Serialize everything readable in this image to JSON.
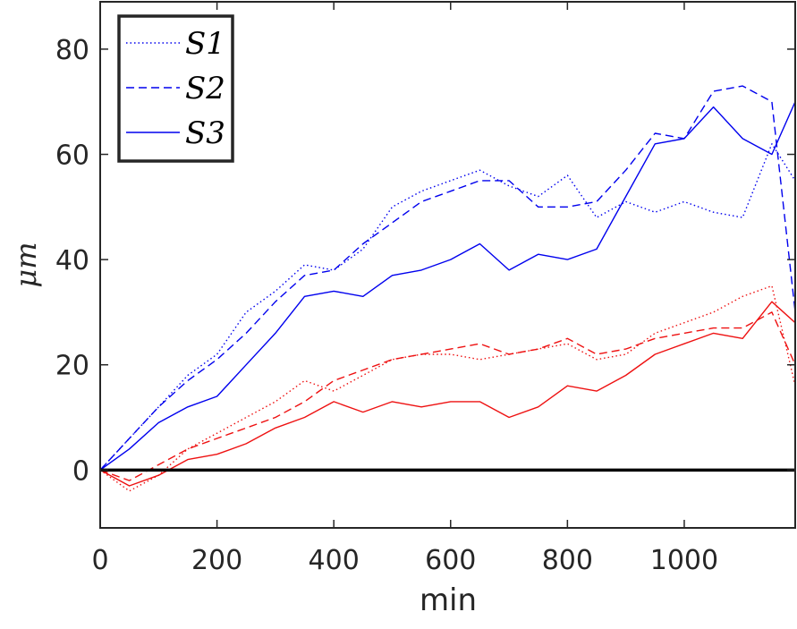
{
  "chart_data": {
    "type": "line",
    "xlabel": "min",
    "ylabel": "μm",
    "xlim": [
      0,
      1190
    ],
    "ylim": [
      -11,
      89
    ],
    "x_ticks": [
      0,
      200,
      400,
      600,
      800,
      1000
    ],
    "y_ticks": [
      0,
      20,
      40,
      60,
      80
    ],
    "reference_line_y": 0,
    "legend": {
      "placement": "top-left",
      "entries": [
        "S1",
        "S2",
        "S3"
      ]
    },
    "colors": {
      "blue": "#0000ee",
      "red": "#ee1111",
      "axis": "#262626",
      "zero_line": "#000000"
    },
    "x": [
      0,
      50,
      100,
      150,
      200,
      250,
      300,
      350,
      400,
      450,
      500,
      550,
      600,
      650,
      700,
      750,
      800,
      850,
      900,
      950,
      1000,
      1050,
      1100,
      1150,
      1190
    ],
    "series": [
      {
        "name": "S1",
        "style": "dotted",
        "color": "#0000ee",
        "values": [
          0,
          6,
          12,
          18,
          22,
          30,
          34,
          39,
          38,
          42,
          50,
          53,
          55,
          57,
          54,
          52,
          56,
          48,
          51,
          49,
          51,
          49,
          48,
          62,
          55
        ]
      },
      {
        "name": "S1",
        "style": "dotted",
        "color": "#ee1111",
        "values": [
          0,
          -4,
          -1,
          4,
          7,
          10,
          13,
          17,
          15,
          18,
          21,
          22,
          22,
          21,
          22,
          23,
          24,
          21,
          22,
          26,
          28,
          30,
          33,
          35,
          16
        ]
      },
      {
        "name": "S2",
        "style": "dashed",
        "color": "#0000ee",
        "values": [
          0,
          6,
          12,
          17,
          21,
          26,
          32,
          37,
          38,
          43,
          47,
          51,
          53,
          55,
          55,
          50,
          50,
          51,
          57,
          64,
          63,
          72,
          73,
          70,
          30
        ]
      },
      {
        "name": "S2",
        "style": "dashed",
        "color": "#ee1111",
        "values": [
          0,
          -2,
          1,
          4,
          6,
          8,
          10,
          13,
          17,
          19,
          21,
          22,
          23,
          24,
          22,
          23,
          25,
          22,
          23,
          25,
          26,
          27,
          27,
          30,
          20
        ]
      },
      {
        "name": "S3",
        "style": "solid",
        "color": "#0000ee",
        "values": [
          0,
          4,
          9,
          12,
          14,
          20,
          26,
          33,
          34,
          33,
          37,
          38,
          40,
          43,
          38,
          41,
          40,
          42,
          52,
          62,
          63,
          69,
          63,
          60,
          70
        ]
      },
      {
        "name": "S3",
        "style": "solid",
        "color": "#ee1111",
        "values": [
          0,
          -3,
          -1,
          2,
          3,
          5,
          8,
          10,
          13,
          11,
          13,
          12,
          13,
          13,
          10,
          12,
          16,
          15,
          18,
          22,
          24,
          26,
          25,
          32,
          28
        ]
      }
    ]
  }
}
